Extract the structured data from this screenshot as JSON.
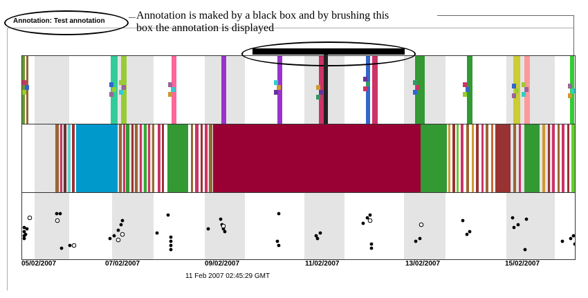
{
  "annotation_marker": {
    "label": "Annotation: Test annotation"
  },
  "caption": {
    "line1": "Annotation is maked by a black box and by brushing this",
    "line2": "box the annotation is displayed"
  },
  "timeline": {
    "date_labels": [
      "05/02/2007",
      "07/02/2007",
      "09/02/2007",
      "11/02/2007",
      "13/02/2007",
      "15/02/2007"
    ],
    "cursor_time": "11 Feb 2007 02:45:29 GMT"
  },
  "colors": {
    "night_shade": "#e4e4e4",
    "dominant_band": "#990033",
    "annotation_box": "#000000"
  }
}
